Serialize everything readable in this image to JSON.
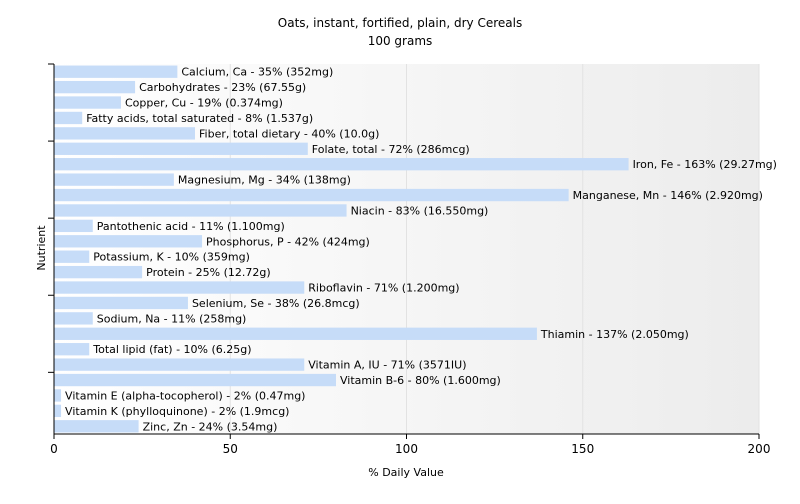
{
  "chart_data": {
    "type": "bar",
    "orientation": "horizontal",
    "title": "Oats, instant, fortified, plain, dry Cereals",
    "subtitle": "100 grams",
    "xlabel": "% Daily Value",
    "ylabel": "Nutrient",
    "xlim": [
      0,
      200
    ],
    "xticks": [
      0,
      50,
      100,
      150,
      200
    ],
    "grid": "vertical",
    "bar_color": "#c6dcf8",
    "plot_background": "gradient-white-to-light-gray",
    "categories": [
      "Calcium, Ca",
      "Carbohydrates",
      "Copper, Cu",
      "Fatty acids, total saturated",
      "Fiber, total dietary",
      "Folate, total",
      "Iron, Fe",
      "Magnesium, Mg",
      "Manganese, Mn",
      "Niacin",
      "Pantothenic acid",
      "Phosphorus, P",
      "Potassium, K",
      "Protein",
      "Riboflavin",
      "Selenium, Se",
      "Sodium, Na",
      "Thiamin",
      "Total lipid (fat)",
      "Vitamin A, IU",
      "Vitamin B-6",
      "Vitamin E (alpha-tocopherol)",
      "Vitamin K (phylloquinone)",
      "Zinc, Zn"
    ],
    "values": [
      35,
      23,
      19,
      8,
      40,
      72,
      163,
      34,
      146,
      83,
      11,
      42,
      10,
      25,
      71,
      38,
      11,
      137,
      10,
      71,
      80,
      2,
      2,
      24
    ],
    "labels": [
      "Calcium, Ca - 35% (352mg)",
      "Carbohydrates - 23% (67.55g)",
      "Copper, Cu - 19% (0.374mg)",
      "Fatty acids, total saturated - 8% (1.537g)",
      "Fiber, total dietary - 40% (10.0g)",
      "Folate, total - 72% (286mcg)",
      "Iron, Fe - 163% (29.27mg)",
      "Magnesium, Mg - 34% (138mg)",
      "Manganese, Mn - 146% (2.920mg)",
      "Niacin - 83% (16.550mg)",
      "Pantothenic acid - 11% (1.100mg)",
      "Phosphorus, P - 42% (424mg)",
      "Potassium, K - 10% (359mg)",
      "Protein - 25% (12.72g)",
      "Riboflavin - 71% (1.200mg)",
      "Selenium, Se - 38% (26.8mcg)",
      "Sodium, Na - 11% (258mg)",
      "Thiamin - 137% (2.050mg)",
      "Total lipid (fat) - 10% (6.25g)",
      "Vitamin A, IU - 71% (3571IU)",
      "Vitamin B-6 - 80% (1.600mg)",
      "Vitamin E (alpha-tocopherol) - 2% (0.47mg)",
      "Vitamin K (phylloquinone) - 2% (1.9mcg)",
      "Zinc, Zn - 24% (3.54mg)"
    ]
  }
}
